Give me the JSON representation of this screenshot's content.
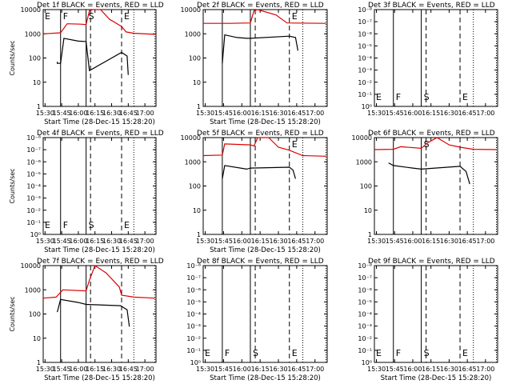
{
  "panels": [
    {
      "title": "Det 1f BLACK = Events, RED = LLD",
      "ylabel": "Counts/sec",
      "xlabel": "Start Time (28-Dec-15 15:28:20)",
      "yticks_kind": "count",
      "ytick_labels": [
        "1",
        "10",
        "100",
        "1000",
        "10000"
      ],
      "markers": [
        "E",
        "F",
        "S",
        "E"
      ]
    },
    {
      "title": "Det 2f BLACK = Events, RED = LLD",
      "ylabel": "",
      "xlabel": "Start Time (28-Dec-15 15:28:20)",
      "yticks_kind": "count",
      "ytick_labels": [
        "1",
        "10",
        "100",
        "1000",
        "10000"
      ],
      "markers": [
        "",
        "",
        "",
        "E"
      ]
    },
    {
      "title": "Det 3f BLACK = Events, RED = LLD",
      "ylabel": "",
      "xlabel": "",
      "yticks_kind": "exp",
      "ytick_labels": [
        "10⁰",
        "10⁻¹",
        "10⁻²",
        "10⁻³",
        "10⁻⁴",
        "10⁻⁵",
        "10⁻⁶",
        "10⁻⁷",
        "10⁻⁸"
      ],
      "markers": [
        "E",
        "F",
        "S",
        "E"
      ]
    },
    {
      "title": "Det 4f BLACK = Events, RED = LLD",
      "ylabel": "Counts/sec",
      "xlabel": "Start Time (28-Dec-15 15:28:20)",
      "yticks_kind": "exp",
      "ytick_labels": [
        "10⁰",
        "10⁻¹",
        "10⁻²",
        "10⁻³",
        "10⁻⁴",
        "10⁻⁵",
        "10⁻⁶",
        "10⁻⁷",
        "10⁻⁸"
      ],
      "markers": [
        "E",
        "F",
        "S",
        "E"
      ]
    },
    {
      "title": "Det 5f BLACK = Events, RED = LLD",
      "ylabel": "",
      "xlabel": "Start Time (28-Dec-15 15:28:20)",
      "yticks_kind": "count",
      "ytick_labels": [
        "1",
        "10",
        "100",
        "1000",
        "10000"
      ],
      "markers": [
        "",
        "",
        "",
        "E"
      ]
    },
    {
      "title": "Det 6f BLACK = Events, RED = LLD",
      "ylabel": "",
      "xlabel": "",
      "yticks_kind": "count",
      "ytick_labels": [
        "1",
        "10",
        "100",
        "1000",
        "10000"
      ],
      "markers": [
        "",
        "",
        "S",
        ""
      ]
    },
    {
      "title": "Det 7f BLACK = Events, RED = LLD",
      "ylabel": "Counts/sec",
      "xlabel": "Start Time (28-Dec-15 15:28:20)",
      "yticks_kind": "count",
      "ytick_labels": [
        "1",
        "10",
        "100",
        "1000",
        "10000"
      ],
      "markers": [
        "",
        "",
        "",
        ""
      ]
    },
    {
      "title": "Det 8f BLACK = Events, RED = LLD",
      "ylabel": "",
      "xlabel": "Start Time (28-Dec-15 15:28:20)",
      "yticks_kind": "exp",
      "ytick_labels": [
        "10⁰",
        "10⁻¹",
        "10⁻²",
        "10⁻³",
        "10⁻⁴",
        "10⁻⁵",
        "10⁻⁶",
        "10⁻⁷",
        "10⁻⁸"
      ],
      "markers": [
        "E",
        "F",
        "S",
        "E"
      ]
    },
    {
      "title": "Det 9f BLACK = Events, RED = LLD",
      "ylabel": "",
      "xlabel": "Start Time (28-Dec-15 15:28:20)",
      "yticks_kind": "exp",
      "ytick_labels": [
        "10⁰",
        "10⁻¹",
        "10⁻²",
        "10⁻³",
        "10⁻⁴",
        "10⁻⁵",
        "10⁻⁶",
        "10⁻⁷",
        "10⁻⁸"
      ],
      "markers": [
        "E",
        "F",
        "S",
        "E"
      ]
    }
  ],
  "xtick_labels": [
    "15:30",
    "15:45",
    "16:00",
    "16:15",
    "16:30",
    "16:45",
    "17:00"
  ],
  "colors": {
    "events": "#000000",
    "lld": "#dd0000",
    "axes": "#000000",
    "background": "#ffffff"
  },
  "chart_data": [
    {
      "type": "line",
      "title": "Det 1f BLACK = Events, RED = LLD",
      "ylabel": "Counts/sec",
      "xlabel": "Start Time (28-Dec-15 15:28:20)",
      "y_scale": "log",
      "ylim": [
        1,
        10000
      ],
      "xlim": [
        "15:28:20",
        "17:10"
      ],
      "vertical_lines": {
        "solid": [
          "15:44",
          "16:07"
        ],
        "dashed": [
          "16:11",
          "16:39"
        ],
        "dotted": [
          "16:50",
          "17:09"
        ]
      },
      "series": [
        {
          "color": "red",
          "points": [
            [
              "15:28",
              1000
            ],
            [
              "15:44",
              1100
            ],
            [
              "15:50",
              2600
            ],
            [
              "16:02",
              2500
            ],
            [
              "16:07",
              2400
            ],
            [
              "16:10",
              9000
            ],
            [
              "16:13",
              11000
            ],
            [
              "16:20",
              10500
            ],
            [
              "16:28",
              4000
            ],
            [
              "16:39",
              2000
            ],
            [
              "16:43",
              1200
            ],
            [
              "16:50",
              1050
            ],
            [
              "17:09",
              950
            ]
          ]
        },
        {
          "color": "black",
          "points": [
            [
              "15:41",
              70
            ],
            [
              "15:41",
              60
            ],
            [
              "15:44",
              60
            ],
            [
              "15:47",
              650
            ],
            [
              "16:00",
              500
            ],
            [
              "16:07",
              480
            ],
            [
              "16:10",
              30
            ],
            [
              "16:39",
              170
            ],
            [
              "16:44",
              120
            ],
            [
              "16:45",
              20
            ]
          ]
        }
      ]
    },
    {
      "type": "line",
      "title": "Det 2f BLACK = Events, RED = LLD",
      "xlabel": "Start Time (28-Dec-15 15:28:20)",
      "y_scale": "log",
      "ylim": [
        1,
        10000
      ],
      "xlim": [
        "15:28:20",
        "17:10"
      ],
      "vertical_lines": {
        "solid": [
          "15:44",
          "16:07"
        ],
        "dashed": [
          "16:11",
          "16:39"
        ],
        "dotted": [
          "16:50",
          "17:09"
        ]
      },
      "series": [
        {
          "color": "red",
          "points": [
            [
              "15:28",
              2700
            ],
            [
              "15:50",
              2700
            ],
            [
              "16:07",
              2800
            ],
            [
              "16:10",
              9000
            ],
            [
              "16:13",
              11000
            ],
            [
              "16:28",
              6000
            ],
            [
              "16:37",
              2800
            ],
            [
              "17:09",
              2700
            ]
          ]
        },
        {
          "color": "black",
          "points": [
            [
              "15:44",
              60
            ],
            [
              "15:46",
              900
            ],
            [
              "15:56",
              700
            ],
            [
              "16:04",
              650
            ],
            [
              "16:07",
              650
            ],
            [
              "16:39",
              800
            ],
            [
              "16:44",
              700
            ],
            [
              "16:46",
              200
            ]
          ]
        }
      ]
    },
    {
      "type": "line",
      "title": "Det 3f BLACK = Events, RED = LLD",
      "y_scale": "log",
      "ylim": [
        "10⁰",
        "10⁻⁸"
      ],
      "xlim": [
        "15:28:20",
        "17:10"
      ],
      "vertical_lines": {
        "solid": [
          "15:44",
          "16:07"
        ],
        "dashed": [
          "16:11",
          "16:39"
        ],
        "dotted": [
          "16:50",
          "17:09"
        ]
      },
      "series": []
    },
    {
      "type": "line",
      "title": "Det 4f BLACK = Events, RED = LLD",
      "ylabel": "Counts/sec",
      "xlabel": "Start Time (28-Dec-15 15:28:20)",
      "y_scale": "log",
      "ylim": [
        "10⁰",
        "10⁻⁸"
      ],
      "xlim": [
        "15:28:20",
        "17:10"
      ],
      "vertical_lines": {
        "solid": [
          "15:44",
          "16:07"
        ],
        "dashed": [
          "16:11",
          "16:39"
        ],
        "dotted": [
          "16:50",
          "17:09"
        ]
      },
      "series": []
    },
    {
      "type": "line",
      "title": "Det 5f BLACK = Events, RED = LLD",
      "xlabel": "Start Time (28-Dec-15 15:28:20)",
      "y_scale": "log",
      "ylim": [
        1,
        10000
      ],
      "xlim": [
        "15:28:20",
        "17:10"
      ],
      "vertical_lines": {
        "solid": [
          "15:44",
          "16:07"
        ],
        "dashed": [
          "16:11",
          "16:39"
        ],
        "dotted": [
          "16:50",
          "17:09"
        ]
      },
      "series": [
        {
          "color": "red",
          "points": [
            [
              "15:28",
              1800
            ],
            [
              "15:44",
              1900
            ],
            [
              "15:46",
              5500
            ],
            [
              "16:07",
              5000
            ],
            [
              "16:10",
              4500
            ],
            [
              "16:13",
              11000
            ],
            [
              "16:22",
              10000
            ],
            [
              "16:30",
              4000
            ],
            [
              "16:39",
              3000
            ],
            [
              "16:50",
              1800
            ],
            [
              "17:09",
              1700
            ]
          ]
        },
        {
          "color": "black",
          "points": [
            [
              "15:44",
              200
            ],
            [
              "15:46",
              700
            ],
            [
              "16:04",
              500
            ],
            [
              "16:07",
              550
            ],
            [
              "16:39",
              600
            ],
            [
              "16:42",
              450
            ],
            [
              "16:44",
              200
            ]
          ]
        }
      ]
    },
    {
      "type": "line",
      "title": "Det 6f BLACK = Events, RED = LLD",
      "y_scale": "log",
      "ylim": [
        1,
        10000
      ],
      "xlim": [
        "15:28:20",
        "17:10"
      ],
      "vertical_lines": {
        "solid": [
          "15:44",
          "16:07"
        ],
        "dashed": [
          "16:11",
          "16:39"
        ],
        "dotted": [
          "16:50",
          "17:09"
        ]
      },
      "series": [
        {
          "color": "red",
          "points": [
            [
              "15:28",
              3200
            ],
            [
              "15:44",
              3300
            ],
            [
              "15:50",
              4200
            ],
            [
              "16:07",
              3600
            ],
            [
              "16:12",
              6000
            ],
            [
              "16:20",
              10000
            ],
            [
              "16:30",
              5000
            ],
            [
              "16:39",
              4000
            ],
            [
              "16:50",
              3300
            ],
            [
              "17:09",
              3200
            ]
          ]
        },
        {
          "color": "black",
          "points": [
            [
              "15:40",
              900
            ],
            [
              "15:44",
              700
            ],
            [
              "16:00",
              550
            ],
            [
              "16:07",
              500
            ],
            [
              "16:39",
              650
            ],
            [
              "16:44",
              400
            ],
            [
              "16:47",
              120
            ]
          ]
        }
      ]
    },
    {
      "type": "line",
      "title": "Det 7f BLACK = Events, RED = LLD",
      "ylabel": "Counts/sec",
      "xlabel": "Start Time (28-Dec-15 15:28:20)",
      "y_scale": "log",
      "ylim": [
        1,
        10000
      ],
      "xlim": [
        "15:28:20",
        "17:10"
      ],
      "vertical_lines": {
        "solid": [
          "15:44",
          "16:07"
        ],
        "dashed": [
          "16:11",
          "16:39"
        ],
        "dotted": [
          "16:50",
          "17:09"
        ]
      },
      "series": [
        {
          "color": "red",
          "points": [
            [
              "15:28",
              450
            ],
            [
              "15:40",
              500
            ],
            [
              "15:46",
              1000
            ],
            [
              "16:07",
              900
            ],
            [
              "16:10",
              2500
            ],
            [
              "16:15",
              11000
            ],
            [
              "16:25",
              5000
            ],
            [
              "16:37",
              1300
            ],
            [
              "16:39",
              600
            ],
            [
              "16:50",
              500
            ],
            [
              "17:09",
              450
            ]
          ]
        },
        {
          "color": "black",
          "points": [
            [
              "15:41",
              120
            ],
            [
              "15:44",
              400
            ],
            [
              "16:00",
              300
            ],
            [
              "16:07",
              250
            ],
            [
              "16:38",
              220
            ],
            [
              "16:44",
              150
            ],
            [
              "16:46",
              30
            ]
          ]
        }
      ]
    },
    {
      "type": "line",
      "title": "Det 8f BLACK = Events, RED = LLD",
      "xlabel": "Start Time (28-Dec-15 15:28:20)",
      "y_scale": "log",
      "ylim": [
        "10⁰",
        "10⁻⁸"
      ],
      "xlim": [
        "15:28:20",
        "17:10"
      ],
      "vertical_lines": {
        "solid": [
          "15:44",
          "16:07"
        ],
        "dashed": [
          "16:11",
          "16:39"
        ],
        "dotted": [
          "16:50",
          "17:09"
        ]
      },
      "series": []
    },
    {
      "type": "line",
      "title": "Det 9f BLACK = Events, RED = LLD",
      "xlabel": "Start Time (28-Dec-15 15:28:20)",
      "y_scale": "log",
      "ylim": [
        "10⁰",
        "10⁻⁸"
      ],
      "xlim": [
        "15:28:20",
        "17:10"
      ],
      "vertical_lines": {
        "solid": [
          "15:44",
          "16:07"
        ],
        "dashed": [
          "16:11",
          "16:39"
        ],
        "dotted": [
          "16:50",
          "17:09"
        ]
      },
      "series": []
    }
  ]
}
